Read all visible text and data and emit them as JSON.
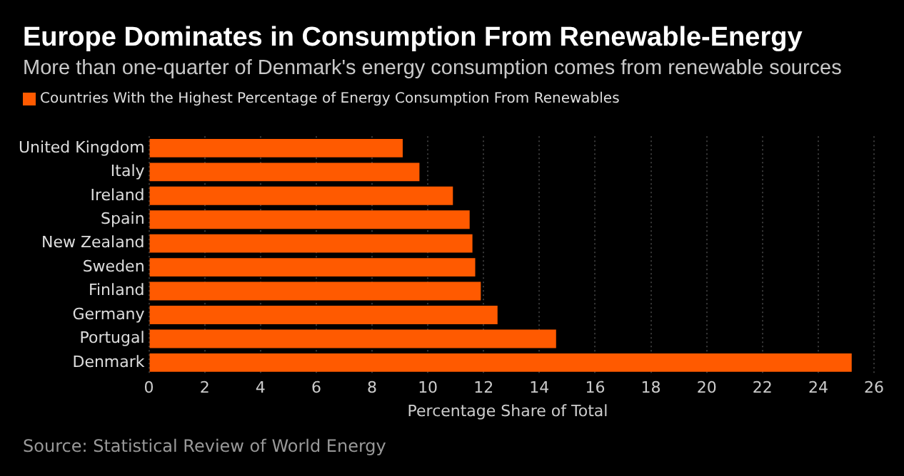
{
  "chart_data": {
    "type": "bar",
    "orientation": "horizontal",
    "title": "Europe Dominates in Consumption From Renewable-Energy",
    "subtitle": "More than one-quarter of Denmark's energy consumption comes from renewable sources",
    "xlabel": "Percentage Share of Total",
    "categories": [
      "United Kingdom",
      "Italy",
      "Ireland",
      "Spain",
      "New Zealand",
      "Sweden",
      "Finland",
      "Germany",
      "Portugal",
      "Denmark"
    ],
    "series": [
      {
        "name": "Countries With the Highest Percentage of Energy Consumption From Renewables",
        "color": "#ff5a00",
        "values": [
          9.1,
          9.7,
          10.9,
          11.5,
          11.6,
          11.7,
          11.9,
          12.5,
          14.6,
          25.2
        ]
      }
    ],
    "xlim": [
      0,
      26
    ],
    "xticks": [
      0,
      2,
      4,
      6,
      8,
      10,
      12,
      14,
      16,
      18,
      20,
      22,
      24,
      26
    ],
    "grid": "x",
    "legend": "top left",
    "annotations": [
      "Source: Statistical Review of World Energy"
    ]
  }
}
